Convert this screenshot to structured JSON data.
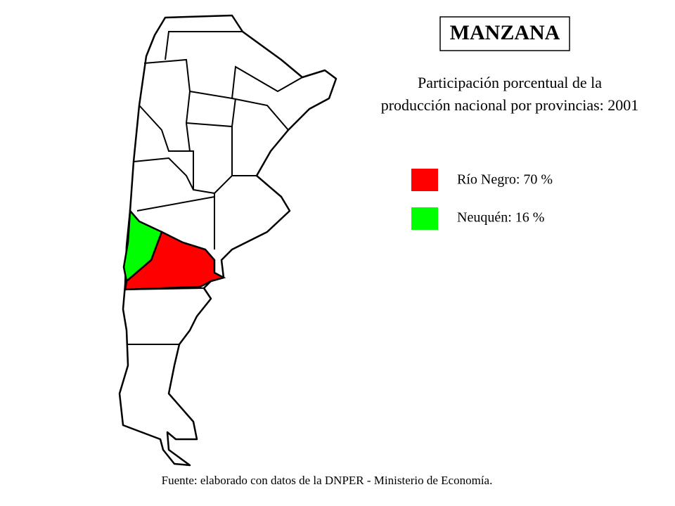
{
  "title": "MANZANA",
  "subtitle": [
    "Participación porcentual de la",
    "producción nacional por provincias: 2001"
  ],
  "legend": [
    {
      "label": "Río Negro: 70 %",
      "color": "#ff0000"
    },
    {
      "label": "Neuquén: 16 %",
      "color": "#00ff00"
    }
  ],
  "source": "Fuente: elaborado con datos de la DNPER - Ministerio de Economía."
}
